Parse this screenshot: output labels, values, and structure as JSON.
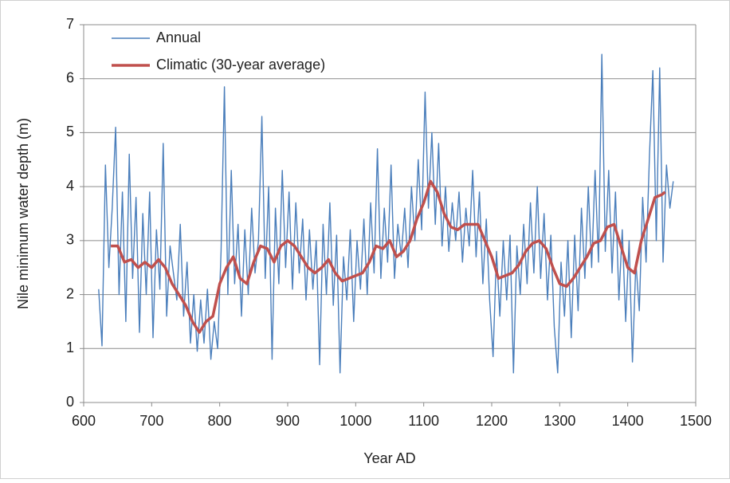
{
  "chart_data": {
    "type": "line",
    "x_label": "Year AD",
    "y_label": "Nile  minimum water depth (m)",
    "xlim": [
      600,
      1500
    ],
    "xticks": [
      600,
      700,
      800,
      900,
      1000,
      1100,
      1200,
      1300,
      1400,
      1500
    ],
    "ylim": [
      0,
      7
    ],
    "yticks": [
      0,
      1,
      2,
      3,
      4,
      5,
      6,
      7
    ],
    "grid": true,
    "legend": "upper left",
    "series": [
      {
        "name": "Annual",
        "color": "#4a7ebb",
        "width": 1.4,
        "x": [
          622,
          627,
          632,
          637,
          642,
          647,
          652,
          657,
          662,
          667,
          672,
          677,
          682,
          687,
          692,
          697,
          702,
          707,
          712,
          717,
          722,
          727,
          732,
          737,
          742,
          747,
          752,
          757,
          762,
          767,
          772,
          777,
          782,
          787,
          792,
          797,
          802,
          807,
          812,
          817,
          822,
          827,
          832,
          837,
          842,
          847,
          852,
          857,
          862,
          867,
          872,
          877,
          882,
          887,
          892,
          897,
          902,
          907,
          912,
          917,
          922,
          927,
          932,
          937,
          942,
          947,
          952,
          957,
          962,
          967,
          972,
          977,
          982,
          987,
          992,
          997,
          1002,
          1007,
          1012,
          1017,
          1022,
          1027,
          1032,
          1037,
          1042,
          1047,
          1052,
          1057,
          1062,
          1067,
          1072,
          1077,
          1082,
          1087,
          1092,
          1097,
          1102,
          1107,
          1112,
          1117,
          1122,
          1127,
          1132,
          1137,
          1142,
          1147,
          1152,
          1157,
          1162,
          1167,
          1172,
          1177,
          1182,
          1187,
          1192,
          1197,
          1202,
          1207,
          1212,
          1217,
          1222,
          1227,
          1232,
          1237,
          1242,
          1247,
          1252,
          1257,
          1262,
          1267,
          1272,
          1277,
          1282,
          1287,
          1292,
          1297,
          1302,
          1307,
          1312,
          1317,
          1322,
          1327,
          1332,
          1337,
          1342,
          1347,
          1352,
          1357,
          1362,
          1367,
          1372,
          1377,
          1382,
          1387,
          1392,
          1397,
          1402,
          1407,
          1412,
          1417,
          1422,
          1427,
          1432,
          1437,
          1442,
          1447,
          1452,
          1457,
          1462,
          1467
        ],
        "values": [
          2.1,
          1.05,
          4.4,
          2.5,
          3.6,
          5.1,
          2.0,
          3.9,
          1.5,
          4.6,
          2.3,
          3.8,
          1.3,
          3.5,
          2.0,
          3.9,
          1.2,
          3.2,
          2.1,
          4.8,
          1.6,
          2.9,
          2.4,
          1.9,
          3.3,
          1.6,
          2.6,
          1.1,
          2.0,
          0.95,
          1.9,
          1.1,
          2.1,
          0.8,
          1.5,
          1.0,
          2.8,
          5.85,
          2.0,
          4.3,
          2.2,
          3.3,
          1.6,
          3.2,
          2.0,
          3.6,
          2.4,
          3.0,
          5.3,
          2.3,
          4.0,
          0.8,
          3.6,
          2.2,
          4.3,
          2.5,
          3.9,
          2.1,
          3.7,
          2.4,
          3.4,
          1.9,
          3.2,
          2.1,
          3.0,
          0.7,
          3.3,
          2.0,
          3.7,
          1.8,
          3.1,
          0.55,
          2.7,
          1.9,
          3.2,
          1.5,
          3.0,
          2.1,
          3.4,
          2.0,
          3.7,
          2.4,
          4.7,
          2.3,
          3.6,
          2.6,
          4.4,
          2.3,
          3.3,
          2.7,
          3.6,
          2.5,
          4.0,
          3.0,
          4.5,
          3.2,
          5.75,
          3.6,
          5.0,
          3.3,
          4.8,
          2.9,
          4.0,
          2.8,
          3.7,
          3.0,
          3.9,
          2.6,
          3.6,
          2.9,
          4.3,
          2.7,
          3.9,
          2.2,
          3.4,
          1.9,
          0.85,
          2.8,
          1.6,
          3.0,
          1.9,
          3.1,
          0.55,
          2.9,
          2.0,
          3.3,
          2.2,
          3.7,
          2.4,
          4.0,
          2.3,
          3.5,
          1.9,
          3.1,
          1.4,
          0.55,
          2.6,
          1.6,
          3.0,
          1.2,
          3.1,
          1.7,
          3.6,
          2.3,
          4.0,
          2.5,
          4.3,
          2.6,
          6.45,
          2.8,
          4.3,
          2.4,
          3.9,
          1.9,
          3.2,
          1.5,
          3.0,
          0.75,
          2.6,
          1.7,
          3.8,
          2.6,
          4.6,
          6.15,
          3.0,
          6.2,
          2.6,
          4.4,
          3.6,
          4.1
        ]
      },
      {
        "name": "Climatic (30-year average)",
        "color": "#c0504d",
        "width": 3.5,
        "x": [
          640,
          650,
          660,
          670,
          680,
          690,
          700,
          710,
          720,
          730,
          740,
          750,
          760,
          770,
          780,
          790,
          800,
          810,
          820,
          830,
          840,
          850,
          860,
          870,
          880,
          890,
          900,
          910,
          920,
          930,
          940,
          950,
          960,
          970,
          980,
          990,
          1000,
          1010,
          1020,
          1030,
          1040,
          1050,
          1060,
          1070,
          1080,
          1090,
          1100,
          1110,
          1120,
          1130,
          1140,
          1150,
          1160,
          1170,
          1180,
          1190,
          1200,
          1210,
          1220,
          1230,
          1240,
          1250,
          1260,
          1270,
          1280,
          1290,
          1300,
          1310,
          1320,
          1330,
          1340,
          1350,
          1360,
          1370,
          1380,
          1390,
          1400,
          1410,
          1420,
          1430,
          1440,
          1450,
          1455
        ],
        "values": [
          2.9,
          2.9,
          2.6,
          2.65,
          2.5,
          2.6,
          2.5,
          2.65,
          2.5,
          2.2,
          2.0,
          1.8,
          1.5,
          1.3,
          1.5,
          1.6,
          2.2,
          2.5,
          2.7,
          2.3,
          2.2,
          2.6,
          2.9,
          2.85,
          2.6,
          2.9,
          3.0,
          2.9,
          2.7,
          2.5,
          2.4,
          2.5,
          2.65,
          2.4,
          2.25,
          2.3,
          2.35,
          2.4,
          2.6,
          2.9,
          2.85,
          3.0,
          2.7,
          2.8,
          3.0,
          3.4,
          3.7,
          4.1,
          3.9,
          3.5,
          3.25,
          3.2,
          3.3,
          3.3,
          3.3,
          3.0,
          2.7,
          2.3,
          2.35,
          2.4,
          2.55,
          2.8,
          2.95,
          3.0,
          2.85,
          2.5,
          2.2,
          2.15,
          2.3,
          2.5,
          2.7,
          2.95,
          3.0,
          3.25,
          3.3,
          2.9,
          2.5,
          2.4,
          3.0,
          3.4,
          3.8,
          3.85,
          3.9
        ]
      }
    ]
  }
}
